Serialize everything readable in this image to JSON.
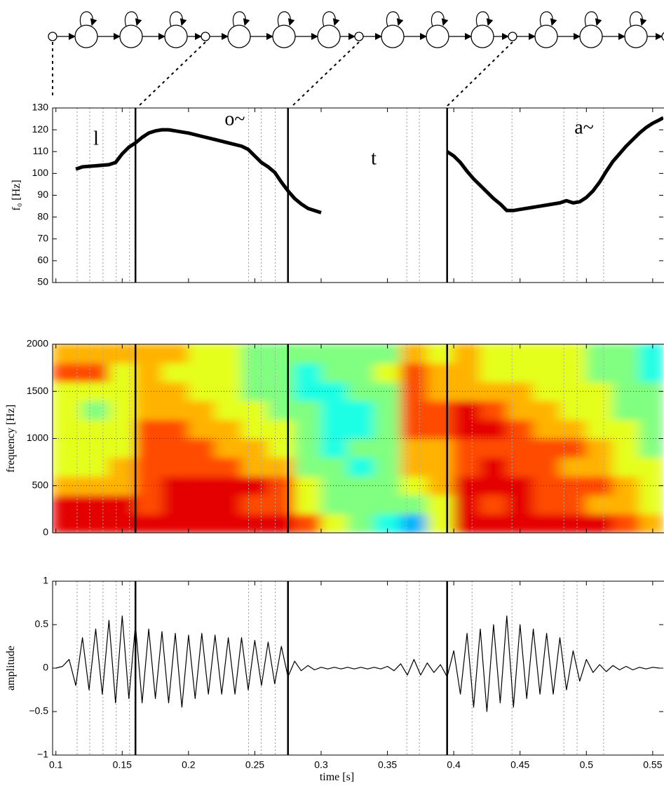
{
  "chart_data": [
    {
      "type": "line",
      "ylabel": "f₀ [Hz]",
      "annotations": [
        "l",
        "o~",
        "t",
        "a~"
      ],
      "xlim": [
        0.0975,
        0.558
      ],
      "ylim": [
        50,
        130
      ],
      "yticks": [
        50,
        60,
        70,
        80,
        90,
        100,
        110,
        120,
        130
      ],
      "boundaries": [
        0.16,
        0.275,
        0.395
      ],
      "frame_marks": [
        0.116,
        0.1255,
        0.1355,
        0.1455,
        0.1555,
        0.2453,
        0.2548,
        0.2654,
        0.3646,
        0.3741,
        0.4138,
        0.4439,
        0.483,
        0.493,
        0.513
      ],
      "color": "#000000",
      "x": [
        0.115,
        0.12,
        0.13,
        0.14,
        0.145,
        0.15,
        0.155,
        0.16,
        0.165,
        0.17,
        0.175,
        0.18,
        0.185,
        0.19,
        0.2,
        0.21,
        0.22,
        0.23,
        0.24,
        0.245,
        0.25,
        0.255,
        0.26,
        0.265,
        0.27,
        0.275,
        0.28,
        0.285,
        0.29,
        0.3,
        0.35,
        0.395,
        0.4,
        0.405,
        0.41,
        0.415,
        0.42,
        0.425,
        0.43,
        0.435,
        0.44,
        0.445,
        0.45,
        0.46,
        0.47,
        0.48,
        0.485,
        0.49,
        0.495,
        0.5,
        0.505,
        0.51,
        0.515,
        0.52,
        0.525,
        0.53,
        0.535,
        0.54,
        0.545,
        0.55,
        0.555,
        0.558
      ],
      "values": [
        102,
        103,
        103.5,
        104,
        105,
        109,
        112,
        114,
        116.5,
        118.5,
        119.5,
        120,
        120,
        119.5,
        118.5,
        117,
        115.5,
        114,
        112.5,
        111,
        108,
        105,
        103,
        100.5,
        96,
        92,
        88.5,
        86,
        84,
        82,
        null,
        110,
        108,
        105,
        101,
        97.5,
        94.5,
        91.5,
        88.5,
        86,
        83,
        83,
        83.5,
        84.5,
        85.5,
        86.5,
        87.5,
        86.5,
        87,
        89,
        92,
        96,
        101,
        105.5,
        109,
        112.5,
        115.5,
        118.5,
        121,
        123,
        124.5,
        125.5
      ]
    },
    {
      "type": "heatmap",
      "ylabel": "frequency [Hz]",
      "xlim": [
        0.0975,
        0.558
      ],
      "ylim": [
        0,
        2000
      ],
      "yticks": [
        0,
        500,
        1000,
        1500,
        2000
      ],
      "grid": true,
      "colormap": "jet",
      "zlim": [
        0,
        10
      ],
      "x_bins": [
        0.0975,
        0.12,
        0.14,
        0.16,
        0.18,
        0.2,
        0.22,
        0.24,
        0.26,
        0.28,
        0.3,
        0.32,
        0.34,
        0.36,
        0.38,
        0.4,
        0.42,
        0.44,
        0.46,
        0.48,
        0.5,
        0.52,
        0.54,
        0.558
      ],
      "y_bins": [
        0,
        200,
        400,
        600,
        800,
        1000,
        1200,
        1400,
        1600,
        1800,
        2000
      ],
      "levels": [
        [
          9,
          9,
          9,
          9,
          9,
          9,
          9,
          9,
          9,
          8,
          6,
          5,
          4,
          3,
          6,
          9,
          9,
          9,
          9,
          9,
          9,
          8,
          7
        ],
        [
          9,
          9,
          9,
          8,
          9,
          9,
          9,
          8,
          8,
          6,
          5,
          5,
          5,
          5,
          6,
          9,
          8,
          9,
          8,
          8,
          7,
          7,
          6
        ],
        [
          7,
          7,
          7,
          8,
          9,
          9,
          9,
          9,
          8,
          6,
          5,
          5,
          5,
          6,
          7,
          9,
          9,
          9,
          8,
          8,
          8,
          7,
          6
        ],
        [
          6,
          6,
          7,
          8,
          8,
          8,
          8,
          7,
          7,
          5,
          5,
          4,
          5,
          7,
          7,
          8,
          9,
          8,
          8,
          7,
          7,
          6,
          6
        ],
        [
          6,
          6,
          6,
          8,
          8,
          8,
          7,
          7,
          6,
          5,
          4,
          5,
          5,
          7,
          7,
          8,
          8,
          8,
          8,
          8,
          7,
          6,
          5
        ],
        [
          6,
          6,
          6,
          8,
          8,
          7,
          7,
          6,
          6,
          5,
          4,
          4,
          5,
          8,
          8,
          9,
          9,
          8,
          7,
          7,
          6,
          6,
          5
        ],
        [
          6,
          5,
          6,
          7,
          7,
          7,
          6,
          6,
          5,
          5,
          4,
          4,
          5,
          8,
          8,
          9,
          8,
          7,
          7,
          6,
          6,
          5,
          5
        ],
        [
          6,
          6,
          6,
          7,
          7,
          6,
          6,
          5,
          5,
          4,
          4,
          5,
          5,
          8,
          7,
          7,
          7,
          7,
          6,
          6,
          6,
          5,
          5
        ],
        [
          8,
          8,
          6,
          7,
          6,
          6,
          6,
          5,
          5,
          4,
          5,
          5,
          6,
          8,
          7,
          7,
          6,
          6,
          6,
          6,
          5,
          5,
          4
        ],
        [
          7,
          7,
          7,
          7,
          7,
          6,
          6,
          5,
          5,
          5,
          5,
          5,
          5,
          7,
          6,
          7,
          6,
          6,
          6,
          6,
          5,
          5,
          4
        ]
      ]
    },
    {
      "type": "line",
      "ylabel": "amplitude",
      "xlabel": "time [s]",
      "xlim": [
        0.0975,
        0.558
      ],
      "ylim": [
        -1,
        1
      ],
      "xticks": [
        0.1,
        0.15,
        0.2,
        0.25,
        0.3,
        0.35,
        0.4,
        0.45,
        0.5,
        0.55
      ],
      "yticks": [
        {
          "value": -1,
          "label": "−1"
        },
        {
          "value": -0.5,
          "label": "−0.5"
        },
        0,
        0.5,
        1
      ],
      "color": "#000000",
      "x": [
        0.1,
        0.105,
        0.11,
        0.115,
        0.12,
        0.125,
        0.13,
        0.135,
        0.14,
        0.145,
        0.15,
        0.155,
        0.16,
        0.165,
        0.17,
        0.175,
        0.18,
        0.185,
        0.19,
        0.195,
        0.2,
        0.205,
        0.21,
        0.215,
        0.22,
        0.225,
        0.23,
        0.235,
        0.24,
        0.245,
        0.25,
        0.255,
        0.26,
        0.265,
        0.27,
        0.275,
        0.28,
        0.285,
        0.29,
        0.295,
        0.3,
        0.305,
        0.31,
        0.315,
        0.32,
        0.325,
        0.33,
        0.335,
        0.34,
        0.345,
        0.35,
        0.355,
        0.36,
        0.365,
        0.37,
        0.375,
        0.38,
        0.385,
        0.39,
        0.395,
        0.4,
        0.405,
        0.41,
        0.415,
        0.42,
        0.425,
        0.43,
        0.435,
        0.44,
        0.445,
        0.45,
        0.455,
        0.46,
        0.465,
        0.47,
        0.475,
        0.48,
        0.485,
        0.49,
        0.495,
        0.5,
        0.505,
        0.51,
        0.515,
        0.52,
        0.525,
        0.53,
        0.535,
        0.54,
        0.545,
        0.55,
        0.555
      ],
      "values": [
        0,
        0.02,
        0.1,
        -0.2,
        0.35,
        -0.25,
        0.45,
        -0.3,
        0.55,
        -0.4,
        0.6,
        -0.35,
        0.5,
        -0.4,
        0.45,
        -0.35,
        0.42,
        -0.4,
        0.4,
        -0.45,
        0.38,
        -0.35,
        0.4,
        -0.3,
        0.38,
        -0.3,
        0.35,
        -0.3,
        0.35,
        -0.25,
        0.32,
        -0.2,
        0.3,
        -0.18,
        0.25,
        -0.1,
        0.08,
        -0.03,
        0.03,
        -0.02,
        0.01,
        -0.01,
        0.01,
        -0.01,
        0.01,
        -0.01,
        0.01,
        -0.01,
        0.01,
        -0.01,
        0.02,
        -0.03,
        0.05,
        -0.08,
        0.1,
        -0.08,
        0.06,
        -0.05,
        0.04,
        -0.1,
        0.2,
        -0.3,
        0.4,
        -0.45,
        0.45,
        -0.5,
        0.5,
        -0.4,
        0.6,
        -0.45,
        0.5,
        -0.35,
        0.45,
        -0.3,
        0.4,
        -0.3,
        0.35,
        -0.25,
        0.2,
        -0.15,
        0.1,
        -0.05,
        0.04,
        -0.04,
        0.03,
        -0.02,
        0.02,
        -0.02,
        0.01,
        -0.01,
        0.01,
        0
      ]
    }
  ]
}
